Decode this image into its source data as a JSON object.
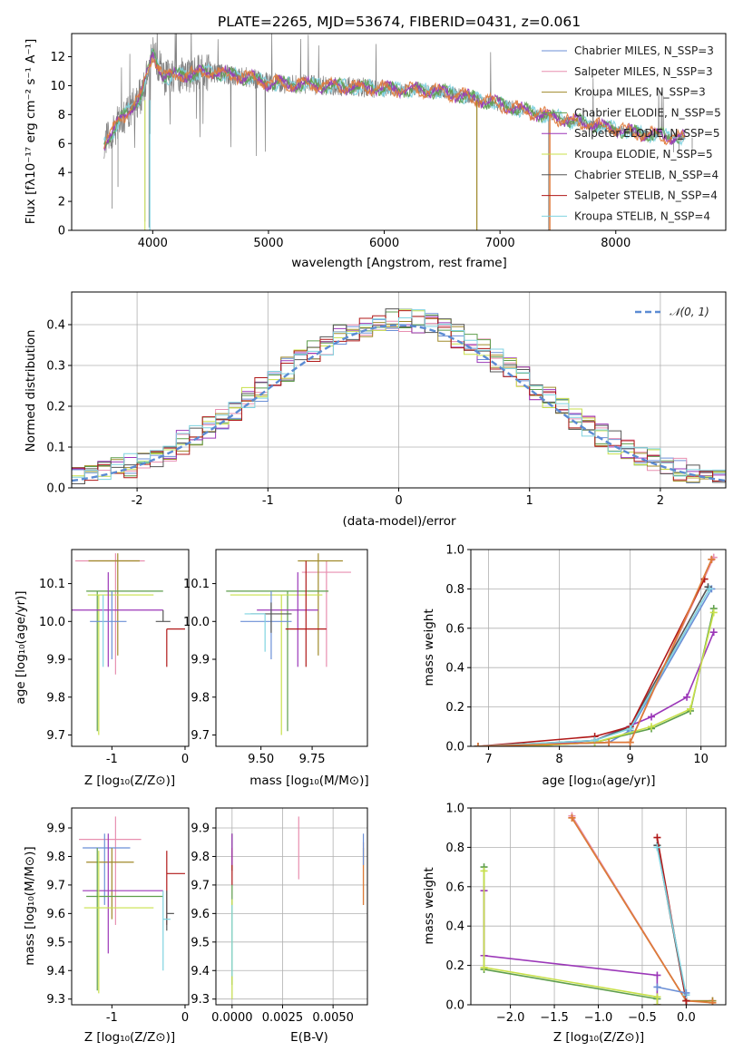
{
  "colors": {
    "chabrier_miles": "#6b8fd6",
    "salpeter_miles": "#e88fb0",
    "kroupa_miles": "#a08a2a",
    "chabrier_elodie": "#5e9e4c",
    "salpeter_elodie": "#9b37b8",
    "kroupa_elodie": "#c8e04a",
    "chabrier_stelib": "#555555",
    "salpeter_stelib": "#b01818",
    "kroupa_stelib": "#7fd3e0",
    "orange": "#e07a3a",
    "data": "#808080",
    "normal": "#5b8bd3"
  },
  "chart_data": [
    {
      "id": "spectrum",
      "type": "line",
      "title": "PLATE=2265, MJD=53674, FIBERID=0431, z=0.061",
      "xlabel": "wavelength [Angstrom, rest frame]",
      "ylabel": "Flux [fλ10⁻¹⁷ erg cm⁻² s⁻¹ A⁻¹]",
      "xlim": [
        3300,
        8950
      ],
      "ylim": [
        0,
        13.6
      ],
      "xticks": [
        4000,
        5000,
        6000,
        7000,
        8000
      ],
      "yticks": [
        0,
        2,
        4,
        6,
        8,
        10,
        12
      ],
      "x_range_data": [
        3580,
        8600
      ],
      "continuum": [
        [
          3580,
          6.0
        ],
        [
          3700,
          7.4
        ],
        [
          3900,
          9.3
        ],
        [
          4000,
          12.2
        ],
        [
          4100,
          10.6
        ],
        [
          4300,
          10.8
        ],
        [
          4500,
          10.9
        ],
        [
          4800,
          10.6
        ],
        [
          5000,
          10.2
        ],
        [
          5500,
          10.0
        ],
        [
          6000,
          9.8
        ],
        [
          6500,
          9.6
        ],
        [
          7000,
          8.7
        ],
        [
          7300,
          8.1
        ],
        [
          7600,
          7.6
        ],
        [
          8000,
          7.0
        ],
        [
          8300,
          6.6
        ],
        [
          8600,
          6.4
        ]
      ],
      "legend": [
        {
          "label": "Chabrier MILES, N_SSP=3",
          "color": "#6b8fd6"
        },
        {
          "label": "Salpeter MILES, N_SSP=3",
          "color": "#e88fb0"
        },
        {
          "label": "Kroupa MILES, N_SSP=3",
          "color": "#a08a2a"
        },
        {
          "label": "Chabrier ELODIE, N_SSP=5",
          "color": "#5e9e4c"
        },
        {
          "label": "Salpeter ELODIE, N_SSP=5",
          "color": "#9b37b8"
        },
        {
          "label": "Kroupa ELODIE, N_SSP=5",
          "color": "#c8e04a"
        },
        {
          "label": "Chabrier STELIB, N_SSP=4",
          "color": "#555555"
        },
        {
          "label": "Salpeter STELIB, N_SSP=4",
          "color": "#b01818"
        },
        {
          "label": "Kroupa STELIB, N_SSP=4",
          "color": "#7fd3e0"
        }
      ],
      "legend_position": "top-right"
    },
    {
      "id": "residuals",
      "type": "histogram",
      "xlabel": "(data-model)/error",
      "ylabel": "Normed distribution",
      "xlim": [
        -2.5,
        2.5
      ],
      "ylim": [
        0,
        0.48
      ],
      "xticks": [
        -2,
        -1,
        0,
        1,
        2
      ],
      "yticks": [
        0.0,
        0.1,
        0.2,
        0.3,
        0.4
      ],
      "bin_width": 0.1,
      "bin_start": -2.5,
      "legend": [
        {
          "label": "𝒩(0, 1)",
          "color": "#5b8bd3"
        }
      ],
      "legend_position": "top-right"
    },
    {
      "id": "age_vs_Z",
      "type": "errorbar",
      "xlabel": "Z [log₁₀(Z/Z⊙)]",
      "ylabel": "age  [log₁₀(age/yr)]",
      "xlim": [
        -1.55,
        0.05
      ],
      "ylim": [
        9.67,
        10.19
      ],
      "xticks": [
        -1,
        0
      ],
      "yticks": [
        9.7,
        9.8,
        9.9,
        10.0,
        10.1
      ]
    },
    {
      "id": "age_vs_mass",
      "type": "errorbar",
      "xlabel": "mass [log₁₀(M/M⊙)]",
      "ylabel": "",
      "xlim": [
        9.28,
        10.02
      ],
      "ylim": [
        9.67,
        10.19
      ],
      "xticks": [
        9.5,
        9.75
      ],
      "xticklabels": [
        "9.50",
        "9.75"
      ],
      "yticks": [
        9.7,
        9.8,
        9.9,
        10.0,
        10.1
      ]
    },
    {
      "id": "weight_vs_age",
      "type": "line",
      "xlabel": "age  [log₁₀(age/yr)]",
      "ylabel": "mass weight",
      "xlim": [
        6.75,
        10.35
      ],
      "ylim": [
        0,
        1.0
      ],
      "xticks": [
        7,
        8,
        9,
        10
      ],
      "yticks": [
        0.0,
        0.2,
        0.4,
        0.6,
        0.8,
        1.0
      ],
      "series": [
        {
          "key": "chabrier_miles",
          "x": [
            6.85,
            8.7,
            9.0,
            10.15
          ],
          "y": [
            0.0,
            0.02,
            0.08,
            0.8
          ]
        },
        {
          "key": "salpeter_miles",
          "x": [
            6.85,
            8.7,
            9.0,
            10.18
          ],
          "y": [
            0.0,
            0.02,
            0.02,
            0.96
          ]
        },
        {
          "key": "kroupa_miles",
          "x": [
            6.85,
            8.7,
            9.0,
            10.15
          ],
          "y": [
            0.0,
            0.02,
            0.02,
            0.95
          ]
        },
        {
          "key": "chabrier_elodie",
          "x": [
            6.85,
            7.5,
            8.5,
            9.3,
            9.85,
            10.18
          ],
          "y": [
            0.0,
            0.0,
            0.02,
            0.09,
            0.18,
            0.7
          ]
        },
        {
          "key": "salpeter_elodie",
          "x": [
            6.85,
            7.5,
            8.5,
            9.3,
            9.8,
            10.18
          ],
          "y": [
            0.0,
            0.0,
            0.03,
            0.15,
            0.25,
            0.58
          ]
        },
        {
          "key": "kroupa_elodie",
          "x": [
            6.85,
            7.5,
            8.5,
            9.3,
            9.85,
            10.18
          ],
          "y": [
            0.0,
            0.0,
            0.02,
            0.1,
            0.19,
            0.68
          ]
        },
        {
          "key": "chabrier_stelib",
          "x": [
            6.85,
            8.5,
            9.0,
            10.1
          ],
          "y": [
            0.0,
            0.03,
            0.1,
            0.81
          ]
        },
        {
          "key": "salpeter_stelib",
          "x": [
            6.85,
            8.5,
            9.0,
            10.05
          ],
          "y": [
            0.0,
            0.05,
            0.1,
            0.85
          ]
        },
        {
          "key": "kroupa_stelib",
          "x": [
            6.85,
            8.5,
            9.0,
            10.12
          ],
          "y": [
            0.0,
            0.03,
            0.09,
            0.8
          ]
        },
        {
          "key": "orange",
          "x": [
            6.85,
            8.7,
            9.0,
            10.15
          ],
          "y": [
            0.0,
            0.02,
            0.02,
            0.95
          ]
        }
      ]
    },
    {
      "id": "mass_vs_Z",
      "type": "errorbar",
      "xlabel": "Z [log₁₀(Z/Z⊙)]",
      "ylabel": "mass [log₁₀(M/M⊙)]",
      "xlim": [
        -1.55,
        0.05
      ],
      "ylim": [
        9.28,
        9.97
      ],
      "xticks": [
        -1,
        0
      ],
      "yticks": [
        9.3,
        9.4,
        9.5,
        9.6,
        9.7,
        9.8,
        9.9
      ]
    },
    {
      "id": "mass_vs_EBV",
      "type": "errorbar",
      "xlabel": "E(B-V)",
      "ylabel": "",
      "xlim": [
        -0.0008,
        0.0067
      ],
      "ylim": [
        9.28,
        9.97
      ],
      "xticks": [
        0.0,
        0.0025,
        0.005
      ],
      "xticklabels": [
        "0.0000",
        "0.0025",
        "0.0050"
      ],
      "yticks": [
        9.3,
        9.4,
        9.5,
        9.6,
        9.7,
        9.8,
        9.9
      ]
    },
    {
      "id": "weight_vs_Z",
      "type": "line",
      "xlabel": "Z [log₁₀(Z/Z⊙)]",
      "ylabel": "mass weight",
      "xlim": [
        -2.45,
        0.45
      ],
      "ylim": [
        0,
        1.0
      ],
      "xticks": [
        -2.0,
        -1.5,
        -1.0,
        -0.5,
        0.0
      ],
      "xticklabels": [
        "−2.0",
        "−1.5",
        "−1.0",
        "−0.5",
        "0.0"
      ],
      "yticks": [
        0.0,
        0.2,
        0.4,
        0.6,
        0.8,
        1.0
      ],
      "series": [
        {
          "key": "chabrier_elodie",
          "x": [
            -2.3,
            -2.3,
            -0.33,
            -0.33
          ],
          "y": [
            0.7,
            0.18,
            0.03,
            0.0
          ]
        },
        {
          "key": "salpeter_elodie",
          "x": [
            -2.3,
            -2.3,
            -0.33,
            -0.33
          ],
          "y": [
            0.58,
            0.25,
            0.15,
            0.0
          ]
        },
        {
          "key": "kroupa_elodie",
          "x": [
            -2.3,
            -2.3,
            -0.33,
            -0.33
          ],
          "y": [
            0.68,
            0.19,
            0.04,
            0.0
          ]
        },
        {
          "key": "salpeter_miles",
          "x": [
            -1.3,
            0.0,
            0.3
          ],
          "y": [
            0.96,
            0.02,
            0.02
          ]
        },
        {
          "key": "kroupa_miles",
          "x": [
            -1.3,
            0.0,
            0.3
          ],
          "y": [
            0.95,
            0.02,
            0.02
          ]
        },
        {
          "key": "orange",
          "x": [
            -1.3,
            0.0,
            0.3
          ],
          "y": [
            0.95,
            0.02,
            0.01
          ]
        },
        {
          "key": "chabrier_stelib",
          "x": [
            -0.33,
            0.0
          ],
          "y": [
            0.81,
            0.02
          ]
        },
        {
          "key": "salpeter_stelib",
          "x": [
            -0.33,
            0.0
          ],
          "y": [
            0.85,
            0.02
          ]
        },
        {
          "key": "kroupa_stelib",
          "x": [
            -0.33,
            0.0
          ],
          "y": [
            0.8,
            0.05
          ]
        },
        {
          "key": "chabrier_miles",
          "x": [
            -0.33,
            0.0
          ],
          "y": [
            0.09,
            0.06
          ]
        }
      ]
    }
  ]
}
